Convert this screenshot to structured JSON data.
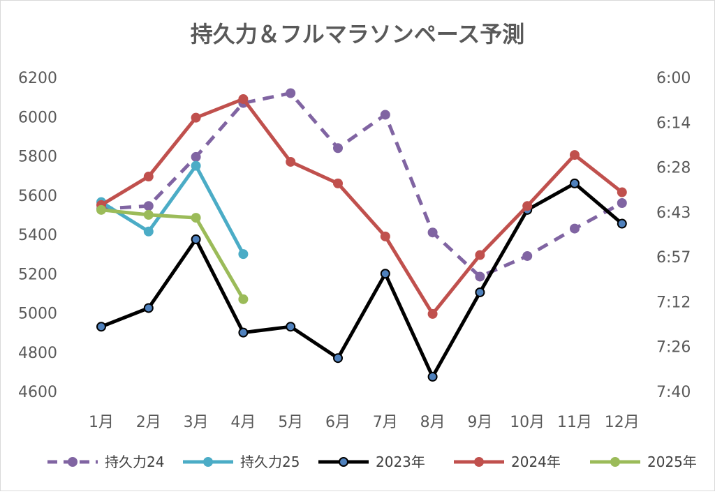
{
  "chart_data": {
    "type": "line",
    "title": "持久力＆フルマラソンペース予測",
    "xlabel": "",
    "ylabel": "",
    "categories": [
      "1月",
      "2月",
      "3月",
      "4月",
      "5月",
      "6月",
      "7月",
      "8月",
      "9月",
      "10月",
      "11月",
      "12月"
    ],
    "ylim": [
      4600,
      6200
    ],
    "yticks": [
      "6200",
      "6000",
      "5800",
      "5600",
      "5400",
      "5200",
      "5000",
      "4800",
      "4600"
    ],
    "y2ticks": [
      "6:00",
      "6:14",
      "6:28",
      "6:43",
      "6:57",
      "7:12",
      "7:26",
      "7:40"
    ],
    "grid": false,
    "legend_position": "bottom",
    "series": [
      {
        "name": "持久力24",
        "color": "#8064a2",
        "dashed": true,
        "marker_stroke": "#8064a2",
        "values": [
          5530,
          5545,
          5795,
          6070,
          6120,
          5840,
          6010,
          5410,
          5185,
          5290,
          5430,
          5560
        ]
      },
      {
        "name": "持久力25",
        "color": "#4bacc6",
        "dashed": false,
        "marker_stroke": "#4bacc6",
        "values": [
          5565,
          5415,
          5750,
          5300,
          null,
          null,
          null,
          null,
          null,
          null,
          null,
          null
        ]
      },
      {
        "name": "2023年",
        "color": "#000000",
        "dashed": false,
        "marker_fill": "#4f81bd",
        "marker_stroke": "#000000",
        "values": [
          4930,
          5025,
          5375,
          4900,
          4930,
          4770,
          5200,
          4675,
          5105,
          5525,
          5660,
          5455
        ]
      },
      {
        "name": "2024年",
        "color": "#c0504d",
        "dashed": false,
        "marker_stroke": "#c0504d",
        "values": [
          5550,
          5695,
          5995,
          6090,
          5770,
          5660,
          5390,
          4995,
          5295,
          5545,
          5805,
          5615
        ]
      },
      {
        "name": "2025年",
        "color": "#9bbb59",
        "dashed": false,
        "marker_stroke": "#9bbb59",
        "values": [
          5525,
          5500,
          5485,
          5070,
          null,
          null,
          null,
          null,
          null,
          null,
          null,
          null
        ]
      }
    ]
  }
}
